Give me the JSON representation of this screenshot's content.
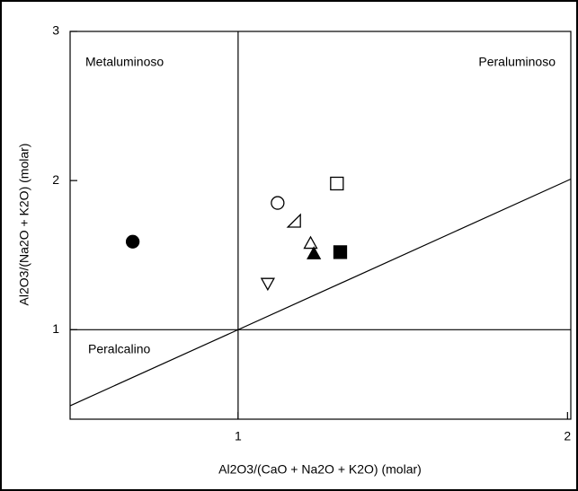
{
  "chart_data": {
    "type": "scatter",
    "x_label": "Al2O3/(CaO + Na2O + K2O)  (molar)",
    "y_label": "Al2O3/(Na2O + K2O)  (molar)",
    "annotations": [
      "Metaluminoso",
      "Peraluminoso",
      "Peralcalino"
    ],
    "xlim": [
      0.49,
      2.01
    ],
    "xticks": [
      1,
      2
    ],
    "ylim": [
      0.4,
      3
    ],
    "yticks": [
      1,
      2,
      3
    ],
    "color": "#000000",
    "points": {
      "x": [
        0.68,
        1.3,
        1.12,
        1.17,
        1.22,
        1.23,
        1.31,
        1.09
      ],
      "y": [
        1.59,
        1.98,
        1.85,
        1.73,
        1.58,
        1.51,
        1.52,
        1.31
      ],
      "marker": [
        "circle",
        "square",
        "circle",
        "right-triangle",
        "triangle-up",
        "triangle-up",
        "square",
        "triangle-down"
      ],
      "filled": [
        true,
        false,
        false,
        false,
        false,
        true,
        true,
        false
      ]
    }
  }
}
